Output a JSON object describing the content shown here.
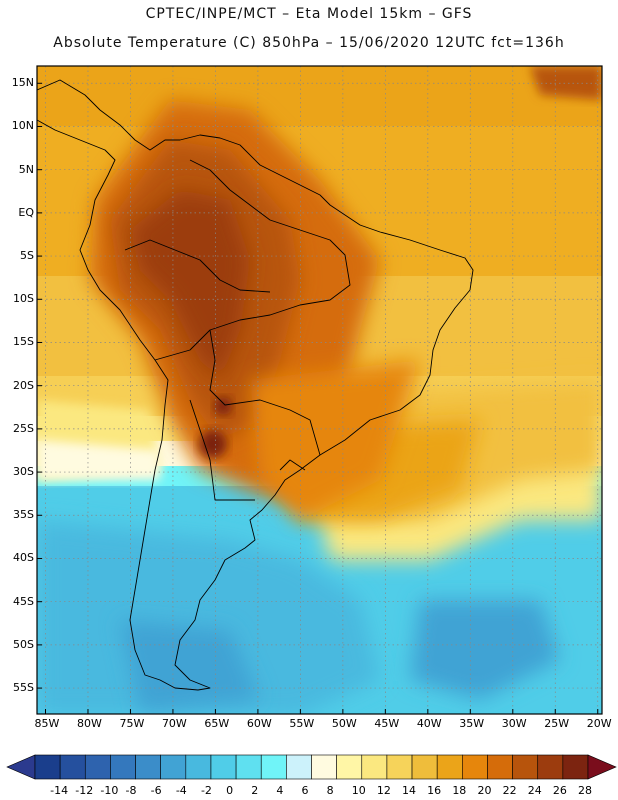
{
  "title": {
    "line1": "CPTEC/INPE/MCT –  Eta Model 15km – GFS",
    "line2": "Absolute Temperature (C) 850hPa – 15/06/2020 12UTC fct=136h"
  },
  "axes": {
    "lat_labels": [
      "15N",
      "10N",
      "5N",
      "EQ",
      "5S",
      "10S",
      "15S",
      "20S",
      "25S",
      "30S",
      "35S",
      "40S",
      "45S",
      "50S",
      "55S"
    ],
    "lon_labels": [
      "85W",
      "80W",
      "75W",
      "70W",
      "65W",
      "60W",
      "55W",
      "50W",
      "45W",
      "40W",
      "35W",
      "30W",
      "25W",
      "20W"
    ],
    "lat_range": [
      17,
      -58
    ],
    "lon_range": [
      -86,
      -19.5
    ]
  },
  "colorbar": {
    "labels": [
      "-14",
      "-12",
      "-10",
      "-8",
      "-6",
      "-4",
      "-2",
      "0",
      "2",
      "4",
      "6",
      "8",
      "10",
      "12",
      "14",
      "16",
      "18",
      "20",
      "22",
      "24",
      "26",
      "28"
    ],
    "colors": [
      "#1a3e8c",
      "#25509e",
      "#2e63ae",
      "#3478bd",
      "#3b8dc9",
      "#41a3d4",
      "#48b9df",
      "#50cde8",
      "#5fe0f0",
      "#70f4f8",
      "#ccf2fb",
      "#fffbe0",
      "#fff6a6",
      "#fbe880",
      "#f6d35a",
      "#efbd3b",
      "#eba419",
      "#e6860c",
      "#d56c0a",
      "#b7540c",
      "#9c3c0e",
      "#7c2410"
    ],
    "under_color": "#2b3a8e",
    "over_color": "#7a0d1c"
  }
}
